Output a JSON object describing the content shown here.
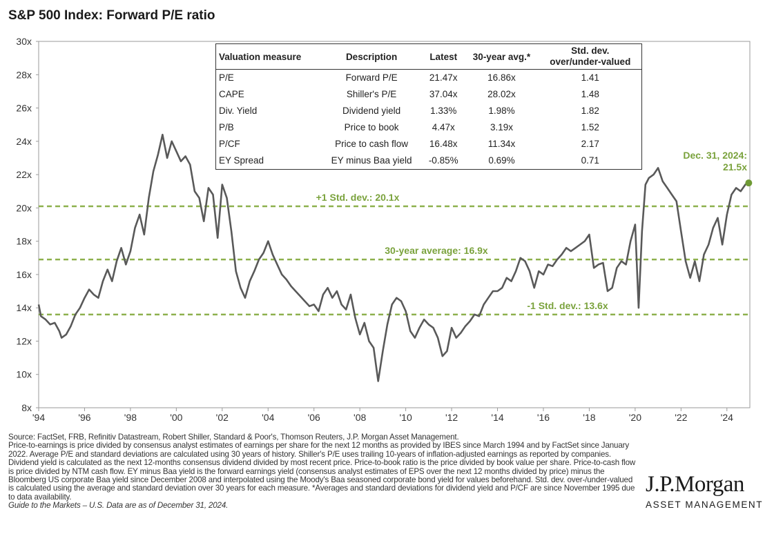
{
  "chart_data": {
    "type": "line",
    "title": "S&P 500 Index: Forward P/E ratio",
    "ylim": [
      8,
      30
    ],
    "xlim": [
      1994.0,
      2025.0
    ],
    "y_ticks": [
      8,
      10,
      12,
      14,
      16,
      18,
      20,
      22,
      24,
      26,
      28,
      30
    ],
    "y_tick_labels": [
      "8x",
      "10x",
      "12x",
      "14x",
      "16x",
      "18x",
      "20x",
      "22x",
      "24x",
      "26x",
      "28x",
      "30x"
    ],
    "x_ticks": [
      1994,
      1996,
      1998,
      2000,
      2002,
      2004,
      2006,
      2008,
      2010,
      2012,
      2014,
      2016,
      2018,
      2020,
      2022,
      2024
    ],
    "x_tick_labels": [
      "'94",
      "'96",
      "'98",
      "'00",
      "'02",
      "'04",
      "'06",
      "'08",
      "'10",
      "'12",
      "'14",
      "'16",
      "'18",
      "'20",
      "'22",
      "'24"
    ],
    "grid": false,
    "series": [
      {
        "color": "#595959",
        "points": [
          [
            1994.0,
            14.2
          ],
          [
            1994.1,
            13.5
          ],
          [
            1994.3,
            13.3
          ],
          [
            1994.5,
            13.0
          ],
          [
            1994.7,
            13.1
          ],
          [
            1994.9,
            12.6
          ],
          [
            1995.0,
            12.2
          ],
          [
            1995.2,
            12.4
          ],
          [
            1995.4,
            12.9
          ],
          [
            1995.6,
            13.6
          ],
          [
            1995.8,
            14.0
          ],
          [
            1996.0,
            14.6
          ],
          [
            1996.2,
            15.1
          ],
          [
            1996.4,
            14.8
          ],
          [
            1996.6,
            14.6
          ],
          [
            1996.8,
            15.6
          ],
          [
            1997.0,
            16.3
          ],
          [
            1997.2,
            15.6
          ],
          [
            1997.4,
            16.8
          ],
          [
            1997.6,
            17.6
          ],
          [
            1997.8,
            16.6
          ],
          [
            1998.0,
            17.4
          ],
          [
            1998.2,
            18.8
          ],
          [
            1998.4,
            19.6
          ],
          [
            1998.6,
            18.4
          ],
          [
            1998.8,
            20.6
          ],
          [
            1999.0,
            22.2
          ],
          [
            1999.2,
            23.2
          ],
          [
            1999.4,
            24.4
          ],
          [
            1999.6,
            23.0
          ],
          [
            1999.8,
            24.0
          ],
          [
            2000.0,
            23.4
          ],
          [
            2000.2,
            22.8
          ],
          [
            2000.4,
            23.1
          ],
          [
            2000.6,
            22.6
          ],
          [
            2000.8,
            21.0
          ],
          [
            2001.0,
            20.6
          ],
          [
            2001.2,
            19.2
          ],
          [
            2001.4,
            21.2
          ],
          [
            2001.6,
            20.8
          ],
          [
            2001.8,
            18.2
          ],
          [
            2002.0,
            21.4
          ],
          [
            2002.2,
            20.6
          ],
          [
            2002.4,
            18.6
          ],
          [
            2002.6,
            16.2
          ],
          [
            2002.8,
            15.2
          ],
          [
            2003.0,
            14.6
          ],
          [
            2003.2,
            15.6
          ],
          [
            2003.4,
            16.2
          ],
          [
            2003.6,
            16.9
          ],
          [
            2003.8,
            17.3
          ],
          [
            2004.0,
            18.0
          ],
          [
            2004.2,
            17.2
          ],
          [
            2004.4,
            16.6
          ],
          [
            2004.6,
            16.0
          ],
          [
            2004.8,
            15.7
          ],
          [
            2005.0,
            15.3
          ],
          [
            2005.2,
            15.0
          ],
          [
            2005.4,
            14.7
          ],
          [
            2005.6,
            14.4
          ],
          [
            2005.8,
            14.1
          ],
          [
            2006.0,
            14.2
          ],
          [
            2006.2,
            13.8
          ],
          [
            2006.4,
            14.8
          ],
          [
            2006.6,
            15.2
          ],
          [
            2006.8,
            14.6
          ],
          [
            2007.0,
            15.0
          ],
          [
            2007.2,
            14.2
          ],
          [
            2007.4,
            13.9
          ],
          [
            2007.6,
            14.8
          ],
          [
            2007.8,
            13.4
          ],
          [
            2008.0,
            12.4
          ],
          [
            2008.2,
            13.1
          ],
          [
            2008.4,
            12.0
          ],
          [
            2008.6,
            11.6
          ],
          [
            2008.8,
            9.6
          ],
          [
            2009.0,
            11.4
          ],
          [
            2009.2,
            13.0
          ],
          [
            2009.4,
            14.2
          ],
          [
            2009.6,
            14.6
          ],
          [
            2009.8,
            14.4
          ],
          [
            2010.0,
            13.8
          ],
          [
            2010.2,
            12.6
          ],
          [
            2010.4,
            12.2
          ],
          [
            2010.6,
            12.8
          ],
          [
            2010.8,
            13.3
          ],
          [
            2011.0,
            13.0
          ],
          [
            2011.2,
            12.8
          ],
          [
            2011.4,
            12.2
          ],
          [
            2011.6,
            11.1
          ],
          [
            2011.8,
            11.4
          ],
          [
            2012.0,
            12.8
          ],
          [
            2012.2,
            12.2
          ],
          [
            2012.4,
            12.5
          ],
          [
            2012.6,
            12.9
          ],
          [
            2012.8,
            13.2
          ],
          [
            2013.0,
            13.6
          ],
          [
            2013.2,
            13.5
          ],
          [
            2013.4,
            14.2
          ],
          [
            2013.6,
            14.6
          ],
          [
            2013.8,
            15.0
          ],
          [
            2014.0,
            15.0
          ],
          [
            2014.2,
            15.2
          ],
          [
            2014.4,
            15.8
          ],
          [
            2014.6,
            15.6
          ],
          [
            2014.8,
            16.2
          ],
          [
            2015.0,
            17.0
          ],
          [
            2015.2,
            16.8
          ],
          [
            2015.4,
            16.2
          ],
          [
            2015.6,
            15.2
          ],
          [
            2015.8,
            16.2
          ],
          [
            2016.0,
            16.0
          ],
          [
            2016.2,
            16.6
          ],
          [
            2016.4,
            16.5
          ],
          [
            2016.6,
            16.9
          ],
          [
            2016.8,
            17.2
          ],
          [
            2017.0,
            17.6
          ],
          [
            2017.2,
            17.4
          ],
          [
            2017.4,
            17.6
          ],
          [
            2017.6,
            17.8
          ],
          [
            2017.8,
            18.0
          ],
          [
            2018.0,
            18.4
          ],
          [
            2018.2,
            16.4
          ],
          [
            2018.4,
            16.6
          ],
          [
            2018.6,
            16.7
          ],
          [
            2018.8,
            15.0
          ],
          [
            2019.0,
            15.2
          ],
          [
            2019.2,
            16.4
          ],
          [
            2019.4,
            16.8
          ],
          [
            2019.6,
            16.6
          ],
          [
            2019.8,
            18.0
          ],
          [
            2020.0,
            19.0
          ],
          [
            2020.15,
            14.0
          ],
          [
            2020.3,
            18.6
          ],
          [
            2020.45,
            21.4
          ],
          [
            2020.6,
            21.8
          ],
          [
            2020.8,
            22.0
          ],
          [
            2021.0,
            22.4
          ],
          [
            2021.2,
            21.6
          ],
          [
            2021.4,
            21.2
          ],
          [
            2021.6,
            20.8
          ],
          [
            2021.8,
            20.4
          ],
          [
            2022.0,
            18.6
          ],
          [
            2022.2,
            16.8
          ],
          [
            2022.4,
            15.8
          ],
          [
            2022.6,
            16.8
          ],
          [
            2022.8,
            15.6
          ],
          [
            2023.0,
            17.2
          ],
          [
            2023.2,
            17.8
          ],
          [
            2023.4,
            18.8
          ],
          [
            2023.6,
            19.4
          ],
          [
            2023.8,
            17.8
          ],
          [
            2024.0,
            19.6
          ],
          [
            2024.2,
            20.8
          ],
          [
            2024.4,
            21.2
          ],
          [
            2024.6,
            21.0
          ],
          [
            2024.8,
            21.4
          ],
          [
            2024.95,
            21.5
          ]
        ]
      }
    ],
    "reference_lines": [
      {
        "value": 20.1,
        "label": "+1 Std. dev.: 20.1x"
      },
      {
        "value": 16.9,
        "label": "30-year average: 16.9x"
      },
      {
        "value": 13.6,
        "label": "-1 Std. dev.: 13.6x"
      }
    ],
    "annotation": {
      "x": 2024.95,
      "y": 21.5,
      "line1": "Dec. 31, 2024:",
      "line2": "21.5x"
    },
    "colors": {
      "line": "#595959",
      "reference": "#8db04c",
      "label": "#7aa23c"
    }
  },
  "table": {
    "headers": [
      "Valuation measure",
      "Description",
      "Latest",
      "30-year avg.*",
      "Std. dev.",
      "over/under-valued"
    ],
    "rows": [
      [
        "P/E",
        "Forward P/E",
        "21.47x",
        "16.86x",
        "1.41"
      ],
      [
        "CAPE",
        "Shiller's P/E",
        "37.04x",
        "28.02x",
        "1.48"
      ],
      [
        "Div. Yield",
        "Dividend yield",
        "1.33%",
        "1.98%",
        "1.82"
      ],
      [
        "P/B",
        "Price to book",
        "4.47x",
        "3.19x",
        "1.52"
      ],
      [
        "P/CF",
        "Price to cash flow",
        "16.48x",
        "11.34x",
        "2.17"
      ],
      [
        "EY Spread",
        "EY minus Baa yield",
        "-0.85%",
        "0.69%",
        "0.71"
      ]
    ]
  },
  "footnote": {
    "source": "Source: FactSet, FRB, Refinitiv Datastream, Robert Shiller, Standard & Poor's, Thomson Reuters, J.P. Morgan Asset Management.",
    "body": "Price-to-earnings is price divided by consensus analyst estimates of earnings per share for the next 12 months as provided by IBES since March 1994 and by FactSet since January 2022. Average P/E and standard deviations are calculated using 30 years of history. Shiller's P/E uses trailing 10-years of inflation-adjusted earnings as reported by companies. Dividend yield is calculated as the next 12-months consensus dividend divided by most recent price. Price-to-book ratio is the price divided by book value per share. Price-to-cash flow is price divided by NTM cash flow. EY minus Baa yield is the forward earnings yield (consensus analyst estimates of EPS over the next 12 months divided by price) minus the Bloomberg US corporate Baa yield since December 2008 and interpolated using the Moody's Baa seasoned corporate bond yield for values beforehand. Std. dev. over-/under-valued is calculated using the average and standard deviation over 30 years for each measure. *Averages and standard deviations for dividend yield and P/CF are since November 1995 due to data availability.",
    "guide": "Guide to the Markets – U.S. Data are as of December 31, 2024."
  },
  "logo": {
    "main": "J.P.Morgan",
    "sub": "ASSET MANAGEMENT"
  }
}
